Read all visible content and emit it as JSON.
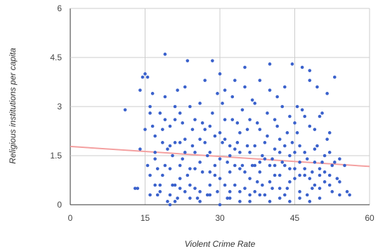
{
  "chart_data": {
    "type": "scatter",
    "title": "",
    "xlabel": "Violent Crime Rate",
    "ylabel": "Religious institutions per capita",
    "xlim": [
      0,
      60
    ],
    "ylim": [
      0,
      6
    ],
    "x_ticks": [
      0,
      15,
      30,
      45,
      60
    ],
    "y_ticks": [
      0,
      1.5,
      3,
      4.5,
      6
    ],
    "x_tick_labels": [
      "0",
      "15",
      "30",
      "45",
      "60"
    ],
    "y_tick_labels": [
      "0",
      "1.5",
      "3",
      "4.5",
      "6"
    ],
    "grid": true,
    "legend": "none",
    "point_color": "#3b62cc",
    "trendline_color": "#f4a0a0",
    "trendline": [
      [
        0,
        1.78
      ],
      [
        60,
        1.17
      ]
    ],
    "series": [
      {
        "points": [
          [
            11,
            2.9
          ],
          [
            13,
            0.5
          ],
          [
            13.5,
            0.5
          ],
          [
            14,
            1.7
          ],
          [
            14,
            3.5
          ],
          [
            14.5,
            3.9
          ],
          [
            15,
            4.0
          ],
          [
            15.5,
            3.9
          ],
          [
            16,
            3.0
          ],
          [
            16,
            2.8
          ],
          [
            16.5,
            2.4
          ],
          [
            17,
            1.6
          ],
          [
            17,
            0.6
          ],
          [
            17.5,
            0.3
          ],
          [
            18,
            0.6
          ],
          [
            18.5,
            1.9
          ],
          [
            18.5,
            2.3
          ],
          [
            19,
            4.6
          ],
          [
            19.5,
            0.1
          ],
          [
            20,
            0.0
          ],
          [
            20,
            1.1
          ],
          [
            20.5,
            1.5
          ],
          [
            21,
            2.6
          ],
          [
            21,
            3.0
          ],
          [
            21.5,
            3.5
          ],
          [
            22,
            0.8
          ],
          [
            22,
            1.9
          ],
          [
            22.5,
            2.5
          ],
          [
            23,
            0.4
          ],
          [
            23,
            3.6
          ],
          [
            23.5,
            4.4
          ],
          [
            24,
            1.1
          ],
          [
            24.5,
            2.3
          ],
          [
            25,
            1.6
          ],
          [
            25,
            0.5
          ],
          [
            26,
            1.3
          ],
          [
            26,
            2.0
          ],
          [
            26.5,
            2.5
          ],
          [
            27,
            3.8
          ],
          [
            27.5,
            0.3
          ],
          [
            28,
            1.0
          ],
          [
            28,
            1.6
          ],
          [
            28.5,
            4.4
          ],
          [
            29,
            2.1
          ],
          [
            29.5,
            0.4
          ],
          [
            30,
            4.0
          ],
          [
            30,
            1.4
          ],
          [
            30.5,
            3.1
          ],
          [
            31,
            3.5
          ],
          [
            31,
            2.0
          ],
          [
            31.5,
            0.2
          ],
          [
            32,
            1.5
          ],
          [
            32,
            1.0
          ],
          [
            32.5,
            2.6
          ],
          [
            33,
            0.6
          ],
          [
            33,
            3.8
          ],
          [
            33.5,
            1.9
          ],
          [
            34,
            2.2
          ],
          [
            34,
            0.1
          ],
          [
            34.5,
            1.2
          ],
          [
            35,
            4.2
          ],
          [
            35,
            3.6
          ],
          [
            35.5,
            2.3
          ],
          [
            36,
            1.6
          ],
          [
            36,
            0.8
          ],
          [
            36.5,
            3.2
          ],
          [
            37,
            1.8
          ],
          [
            37,
            0.4
          ],
          [
            37.5,
            2.5
          ],
          [
            38,
            1.3
          ],
          [
            38,
            3.8
          ],
          [
            38.5,
            0.6
          ],
          [
            39,
            1.9
          ],
          [
            39.5,
            2.8
          ],
          [
            40,
            4.3
          ],
          [
            40,
            1.2
          ],
          [
            40.5,
            0.5
          ],
          [
            41,
            2.6
          ],
          [
            41,
            1.7
          ],
          [
            41.5,
            3.3
          ],
          [
            42,
            0.9
          ],
          [
            42,
            2.0
          ],
          [
            42.5,
            1.3
          ],
          [
            43,
            3.6
          ],
          [
            43,
            0.3
          ],
          [
            43.5,
            2.2
          ],
          [
            44,
            1.5
          ],
          [
            44,
            0.7
          ],
          [
            44.5,
            4.3
          ],
          [
            45,
            2.5
          ],
          [
            45,
            1.1
          ],
          [
            45.5,
            3.0
          ],
          [
            46,
            0.4
          ],
          [
            46,
            1.8
          ],
          [
            46.5,
            4.2
          ],
          [
            47,
            2.7
          ],
          [
            47,
            0.9
          ],
          [
            47.5,
            1.4
          ],
          [
            48,
            4.1
          ],
          [
            48,
            3.8
          ],
          [
            48.5,
            0.5
          ],
          [
            49,
            1.7
          ],
          [
            49,
            2.3
          ],
          [
            49.5,
            3.6
          ],
          [
            50,
            0.2
          ],
          [
            50,
            1.1
          ],
          [
            50.5,
            2.8
          ],
          [
            51,
            1.5
          ],
          [
            51.5,
            3.4
          ],
          [
            52,
            0.6
          ],
          [
            52,
            2.2
          ],
          [
            52.5,
            1.2
          ],
          [
            53,
            3.9
          ],
          [
            53.5,
            0.8
          ],
          [
            54,
            1.4
          ],
          [
            54,
            0.3
          ],
          [
            55,
            1.2
          ],
          [
            55.5,
            0.4
          ],
          [
            56,
            0.3
          ],
          [
            15,
            2.3
          ],
          [
            15.5,
            1.2
          ],
          [
            16,
            0.3
          ],
          [
            16.5,
            3.4
          ],
          [
            17,
            2.1
          ],
          [
            17.5,
            1.1
          ],
          [
            18,
            2.8
          ],
          [
            18.5,
            0.9
          ],
          [
            19,
            3.3
          ],
          [
            19.5,
            1.7
          ],
          [
            20,
            2.4
          ],
          [
            20.5,
            0.6
          ],
          [
            21,
            1.9
          ],
          [
            21.5,
            0.2
          ],
          [
            22,
            2.8
          ],
          [
            22.5,
            1.4
          ],
          [
            23,
            2.0
          ],
          [
            23.5,
            0.9
          ],
          [
            24,
            3.0
          ],
          [
            24.5,
            1.8
          ],
          [
            25,
            2.6
          ],
          [
            25.5,
            0.2
          ],
          [
            26,
            3.1
          ],
          [
            26.5,
            1.0
          ],
          [
            27,
            2.3
          ],
          [
            27.5,
            1.5
          ],
          [
            28,
            0.6
          ],
          [
            28.5,
            2.8
          ],
          [
            29,
            1.2
          ],
          [
            29.5,
            3.4
          ],
          [
            30,
            0.8
          ],
          [
            30.5,
            1.9
          ],
          [
            31,
            2.6
          ],
          [
            31.5,
            1.3
          ],
          [
            32,
            0.4
          ],
          [
            32.5,
            3.3
          ],
          [
            33,
            1.7
          ],
          [
            33.5,
            2.5
          ],
          [
            34,
            1.1
          ],
          [
            34.5,
            2.9
          ],
          [
            35,
            0.5
          ],
          [
            35.5,
            1.8
          ],
          [
            36,
            2.6
          ],
          [
            36.5,
            1.2
          ],
          [
            37,
            3.1
          ],
          [
            37.5,
            0.7
          ],
          [
            38,
            2.3
          ],
          [
            38.5,
            1.5
          ],
          [
            39,
            0.3
          ],
          [
            39.5,
            2.1
          ],
          [
            40,
            3.5
          ],
          [
            40.5,
            1.4
          ],
          [
            41,
            0.9
          ],
          [
            41.5,
            2.4
          ],
          [
            42,
            1.6
          ],
          [
            42.5,
            3.0
          ],
          [
            43,
            1.2
          ],
          [
            43.5,
            0.5
          ],
          [
            44,
            2.7
          ],
          [
            44.5,
            1.9
          ],
          [
            45,
            0.8
          ],
          [
            45.5,
            2.2
          ],
          [
            46,
            1.3
          ],
          [
            46.5,
            2.9
          ],
          [
            47,
            1.6
          ],
          [
            47.5,
            0.3
          ],
          [
            48,
            2.4
          ],
          [
            48.5,
            1.0
          ],
          [
            49,
            0.6
          ],
          [
            49.5,
            1.8
          ],
          [
            50,
            2.7
          ],
          [
            50.5,
            1.3
          ],
          [
            51,
            0.7
          ],
          [
            51.5,
            2.0
          ],
          [
            52,
            1.6
          ],
          [
            52.5,
            0.4
          ],
          [
            16,
            0.9
          ],
          [
            17,
            1.4
          ],
          [
            18,
            0.4
          ],
          [
            19,
            1.2
          ],
          [
            19,
            2.6
          ],
          [
            20,
            1.8
          ],
          [
            21,
            0.6
          ],
          [
            22,
            1.2
          ],
          [
            23,
            1.6
          ],
          [
            24,
            0.6
          ],
          [
            25,
            1.1
          ],
          [
            26,
            0.4
          ],
          [
            27,
            1.9
          ],
          [
            28,
            2.4
          ],
          [
            29,
            0.9
          ],
          [
            30,
            2.2
          ],
          [
            31,
            0.6
          ],
          [
            32,
            1.8
          ],
          [
            33,
            1.2
          ],
          [
            34,
            1.6
          ],
          [
            35,
            1.0
          ],
          [
            36,
            0.3
          ],
          [
            37,
            1.2
          ],
          [
            38,
            1.0
          ],
          [
            39,
            1.4
          ],
          [
            40,
            0.7
          ],
          [
            41,
            1.2
          ],
          [
            42,
            0.5
          ],
          [
            43,
            1.8
          ],
          [
            44,
            1.1
          ],
          [
            45,
            1.6
          ],
          [
            46,
            0.9
          ],
          [
            47,
            1.1
          ],
          [
            48,
            0.8
          ],
          [
            49,
            1.3
          ],
          [
            50,
            0.9
          ],
          [
            51,
            1.0
          ],
          [
            52,
            0.9
          ],
          [
            53,
            1.3
          ],
          [
            54,
            0.7
          ],
          [
            20,
            0.3
          ],
          [
            21,
            0.1
          ],
          [
            22,
            0.5
          ],
          [
            24,
            0.2
          ],
          [
            26,
            0.1
          ],
          [
            28,
            0.3
          ],
          [
            30,
            0.0
          ],
          [
            32,
            0.2
          ],
          [
            34,
            0.4
          ],
          [
            36,
            0.1
          ],
          [
            38,
            0.3
          ],
          [
            40,
            0.1
          ],
          [
            42,
            0.2
          ],
          [
            44,
            0.1
          ],
          [
            46,
            0.2
          ],
          [
            48,
            0.1
          ],
          [
            50,
            0.5
          ]
        ]
      }
    ]
  }
}
